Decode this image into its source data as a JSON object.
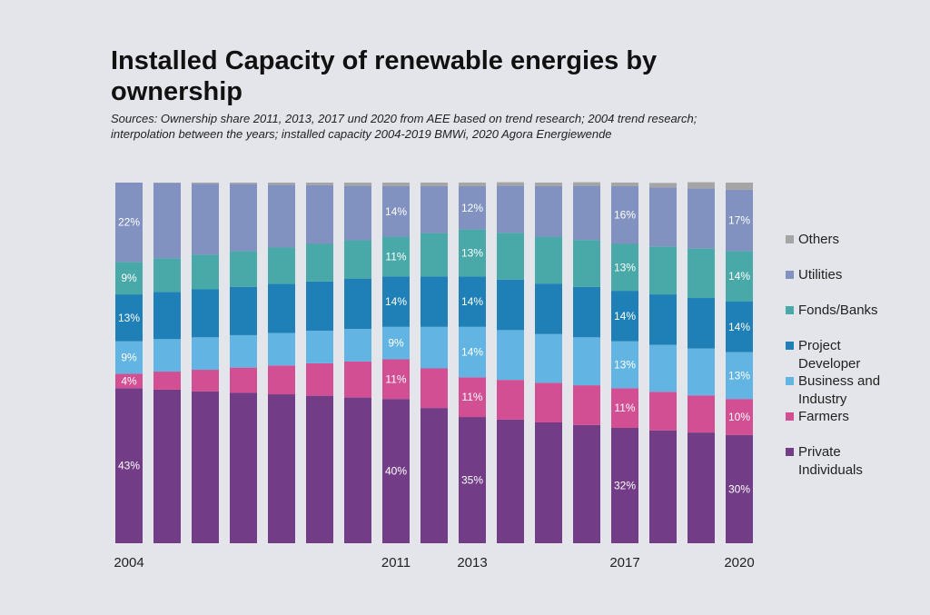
{
  "title": "Installed Capacity of renewable energies by ownership",
  "subtitle": "Sources: Ownership share  2011, 2013, 2017 und 2020 from AEE based on trend research; 2004 trend research; interpolation between the years; installed capacity 2004-2019 BMWi, 2020 Agora Energiewende",
  "chart_data": {
    "type": "bar",
    "stacked": true,
    "unit": "%",
    "title": "Installed Capacity of renewable energies by ownership",
    "categories": [
      2004,
      2005,
      2006,
      2007,
      2008,
      2009,
      2010,
      2011,
      2012,
      2013,
      2014,
      2015,
      2016,
      2017,
      2018,
      2019,
      2020
    ],
    "x_tick_labels": [
      "2004",
      "2011",
      "2013",
      "2017",
      "2020"
    ],
    "labeled_years": [
      2004,
      2011,
      2013,
      2017,
      2020
    ],
    "ylim": [
      0,
      100
    ],
    "grid": false,
    "legend_position": "right",
    "series": [
      {
        "name": "Private Individuals",
        "color": "#733c87",
        "values": [
          43,
          42.6,
          42.1,
          41.7,
          41.3,
          40.9,
          40.4,
          40,
          37.5,
          35,
          34.3,
          33.5,
          32.8,
          32,
          31.3,
          30.7,
          30
        ]
      },
      {
        "name": "Farmers",
        "color": "#d24f93",
        "values": [
          4,
          5,
          6,
          7,
          8,
          9,
          10,
          11,
          11,
          11,
          11,
          11,
          11,
          11,
          10.7,
          10.3,
          10
        ]
      },
      {
        "name": "Business and Industry",
        "color": "#62b5e2",
        "values": [
          9,
          9,
          9,
          9,
          9,
          9,
          9,
          9,
          11.5,
          14,
          13.8,
          13.5,
          13.3,
          13,
          13,
          13,
          13
        ]
      },
      {
        "name": "Project Developer",
        "color": "#1e80b6",
        "values": [
          13,
          13.1,
          13.3,
          13.4,
          13.6,
          13.7,
          13.9,
          14,
          14,
          14,
          14,
          14,
          14,
          14,
          14,
          14,
          14
        ]
      },
      {
        "name": "Fonds/Banks",
        "color": "#48a9a8",
        "values": [
          9,
          9.3,
          9.6,
          9.9,
          10.1,
          10.4,
          10.7,
          11,
          12,
          13,
          13,
          13,
          13,
          13,
          13.3,
          13.7,
          14
        ]
      },
      {
        "name": "Utilities",
        "color": "#8192c0",
        "values": [
          22,
          20.9,
          19.7,
          18.6,
          17.4,
          16.3,
          15.1,
          14,
          13,
          12,
          13,
          14,
          15,
          16,
          16.3,
          16.7,
          17
        ]
      },
      {
        "name": "Others",
        "color": "#a5a5a5",
        "values": [
          0,
          0.1,
          0.3,
          0.4,
          0.6,
          0.7,
          0.9,
          1,
          1,
          1,
          1,
          1,
          1,
          1,
          1.3,
          1.7,
          2
        ]
      }
    ]
  },
  "legend": [
    {
      "label": "Others",
      "color": "#a5a5a5"
    },
    {
      "label": "Utilities",
      "color": "#8192c0"
    },
    {
      "label": "Fonds/Banks",
      "color": "#48a9a8"
    },
    {
      "label": "Project Developer",
      "color": "#1e80b6"
    },
    {
      "label": "Business and Industry",
      "color": "#62b5e2"
    },
    {
      "label": "Farmers",
      "color": "#d24f93"
    },
    {
      "label": "Private Individuals",
      "color": "#733c87"
    }
  ]
}
